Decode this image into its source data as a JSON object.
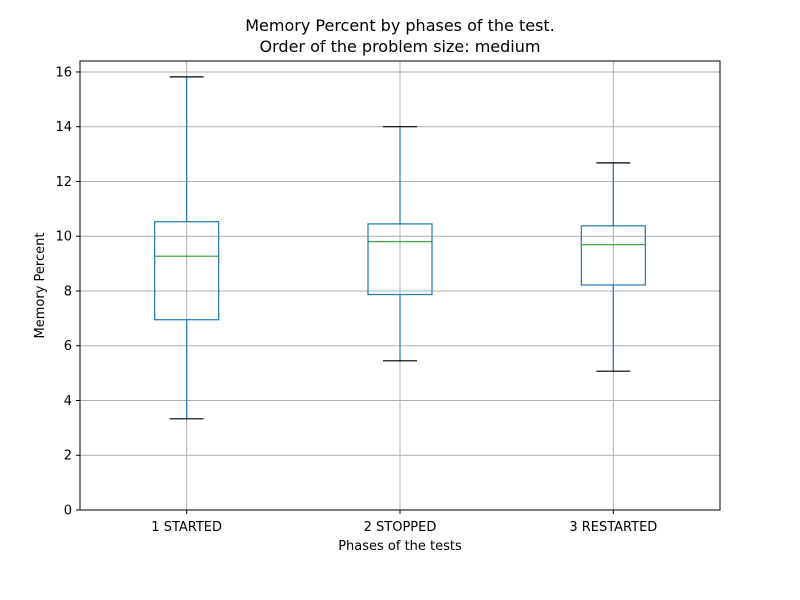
{
  "chart_data": {
    "type": "box",
    "title": "Memory Percent by phases of the test.",
    "subtitle": "Order of the problem size: medium",
    "xlabel": "Phases of the tests",
    "ylabel": "Memory Percent",
    "ylim": [
      0,
      16.4
    ],
    "yticks": [
      0,
      2,
      4,
      6,
      8,
      10,
      12,
      14,
      16
    ],
    "grid": true,
    "categories": [
      "1 STARTED",
      "2 STOPPED",
      "3 RESTARTED"
    ],
    "boxes": [
      {
        "category": "1 STARTED",
        "whisker_low": 3.33,
        "q1": 6.95,
        "median": 9.27,
        "q3": 10.53,
        "whisker_high": 15.82
      },
      {
        "category": "2 STOPPED",
        "whisker_low": 5.45,
        "q1": 7.87,
        "median": 9.8,
        "q3": 10.45,
        "whisker_high": 14.0
      },
      {
        "category": "3 RESTARTED",
        "whisker_low": 5.07,
        "q1": 8.22,
        "median": 9.69,
        "q3": 10.38,
        "whisker_high": 12.68
      }
    ],
    "colors": {
      "box": "#1f77b4",
      "median": "#2ca02c",
      "cap": "#000000",
      "grid": "#b0b0b0"
    }
  }
}
